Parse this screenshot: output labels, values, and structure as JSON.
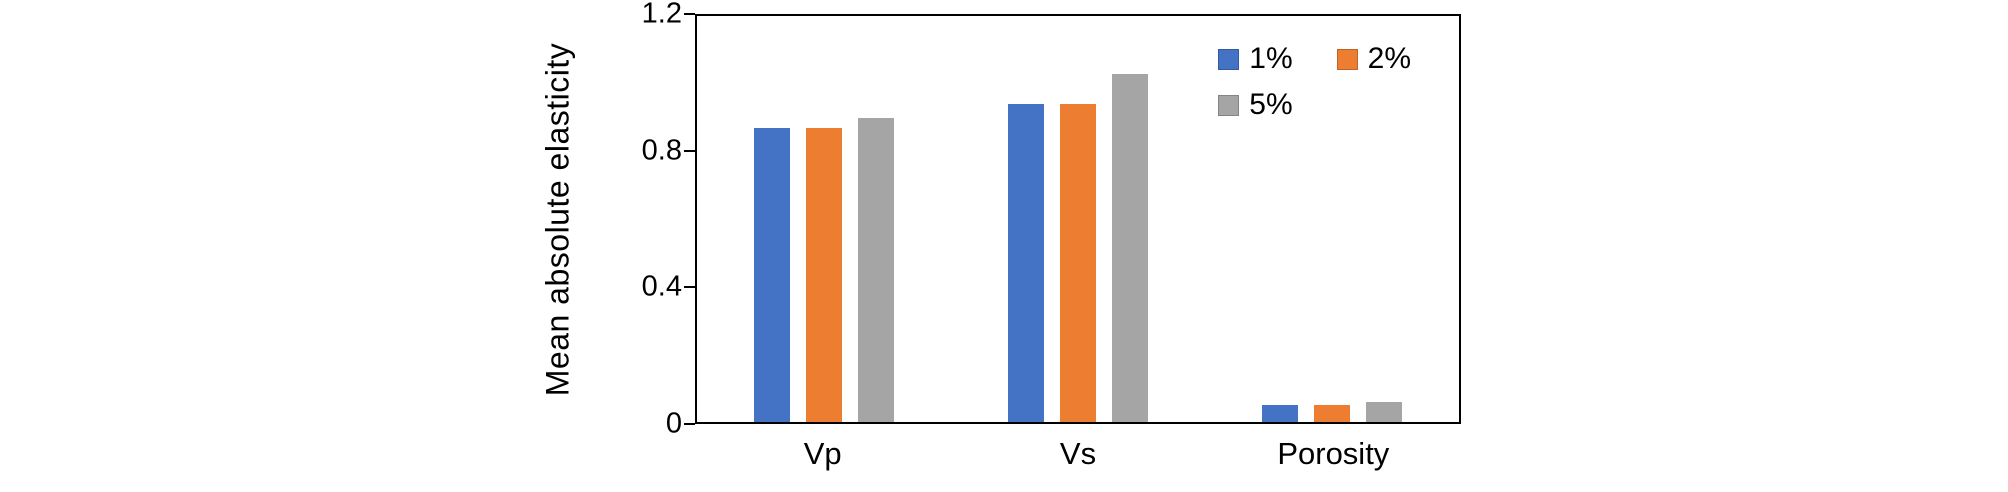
{
  "chart_data": {
    "type": "bar",
    "title": "",
    "xlabel": "",
    "ylabel": "Mean absolute elasticity",
    "ylim": [
      0,
      1.2
    ],
    "yticks": [
      0,
      0.4,
      0.8,
      1.2
    ],
    "ytick_labels": [
      "0",
      "0.4",
      "0.8",
      "1.2"
    ],
    "grid": false,
    "legend_position": "top-right-inside",
    "categories": [
      "Vp",
      "Vs",
      "Porosity"
    ],
    "series": [
      {
        "name": "1%",
        "color": "#4472C4",
        "values": [
          0.87,
          0.94,
          0.05
        ]
      },
      {
        "name": "2%",
        "color": "#ED7D31",
        "values": [
          0.87,
          0.94,
          0.05
        ]
      },
      {
        "name": "5%",
        "color": "#A5A5A5",
        "values": [
          0.9,
          1.03,
          0.06
        ]
      }
    ]
  }
}
